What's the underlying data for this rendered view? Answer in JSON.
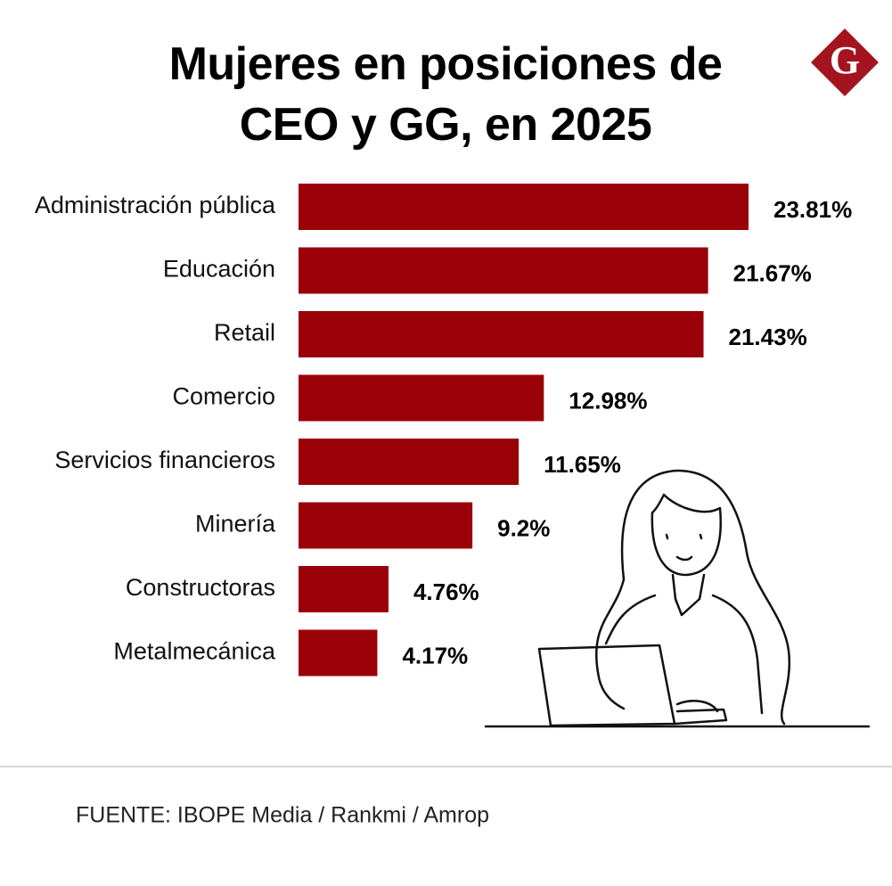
{
  "chart_data": {
    "type": "bar",
    "orientation": "horizontal",
    "title": "Mujeres en posiciones de CEO y GG, en 2025",
    "categories": [
      "Administración pública",
      "Educación",
      "Retail",
      "Comercio",
      "Servicios financieros",
      "Minería",
      "Constructoras",
      "Metalmecánica"
    ],
    "values": [
      23.81,
      21.67,
      21.43,
      12.98,
      11.65,
      9.2,
      4.76,
      4.17
    ],
    "value_labels": [
      "23.81%",
      "21.67%",
      "21.43%",
      "12.98%",
      "11.65%",
      "9.2%",
      "4.76%",
      "4.17%"
    ],
    "color": "#990008",
    "source": "FUENTE: IBOPE Media / Rankmi / Amrop",
    "logo": "G"
  }
}
